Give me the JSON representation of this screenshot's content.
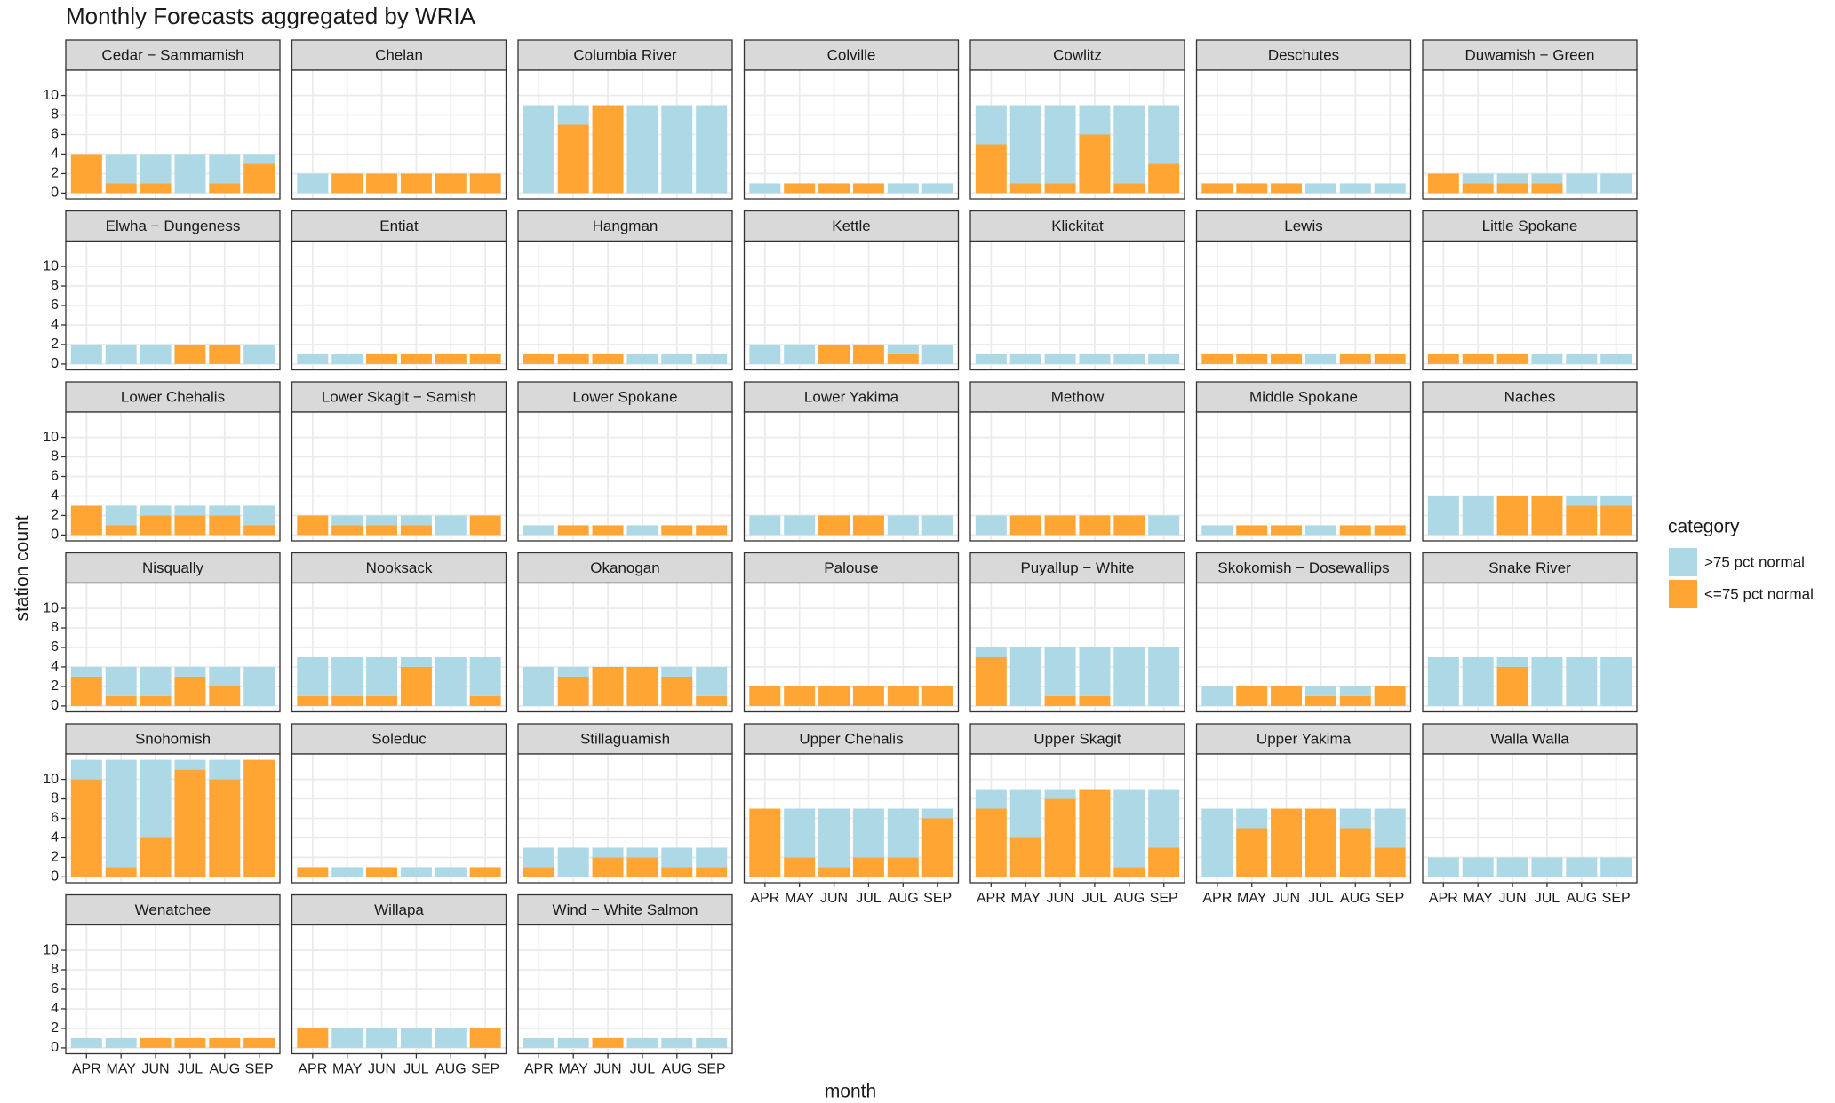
{
  "chart_data": {
    "type": "bar",
    "stacked": true,
    "title": "Monthly Forecasts aggregated by WRIA",
    "x_label": "month",
    "y_label": "station count",
    "legend_title": "category",
    "legend": "right",
    "grid": true,
    "categories": [
      "APR",
      "MAY",
      "JUN",
      "JUL",
      "AUG",
      "SEP"
    ],
    "ylim": [
      -0.6,
      12.6
    ],
    "yticks": [
      0,
      2,
      4,
      6,
      8,
      10
    ],
    "series": [
      {
        "name": ">75 pct normal",
        "color": "#add8e6"
      },
      {
        "name": "<=75 pct normal",
        "color": "#ffa533"
      }
    ],
    "facets": [
      {
        "title": "Cedar − Sammamish",
        "values": [
          [
            0,
            3,
            3,
            4,
            3,
            1
          ],
          [
            4,
            1,
            1,
            0,
            1,
            3
          ]
        ]
      },
      {
        "title": "Chelan",
        "values": [
          [
            2,
            0,
            0,
            0,
            0,
            0
          ],
          [
            0,
            2,
            2,
            2,
            2,
            2
          ]
        ]
      },
      {
        "title": "Columbia River",
        "values": [
          [
            9,
            2,
            0,
            9,
            9,
            9
          ],
          [
            0,
            7,
            9,
            0,
            0,
            0
          ]
        ]
      },
      {
        "title": "Colville",
        "values": [
          [
            1,
            0,
            0,
            0,
            1,
            1
          ],
          [
            0,
            1,
            1,
            1,
            0,
            0
          ]
        ]
      },
      {
        "title": "Cowlitz",
        "values": [
          [
            4,
            8,
            8,
            3,
            8,
            6
          ],
          [
            5,
            1,
            1,
            6,
            1,
            3
          ]
        ]
      },
      {
        "title": "Deschutes",
        "values": [
          [
            0,
            0,
            0,
            1,
            1,
            1
          ],
          [
            1,
            1,
            1,
            0,
            0,
            0
          ]
        ]
      },
      {
        "title": "Duwamish − Green",
        "values": [
          [
            0,
            1,
            1,
            1,
            2,
            2
          ],
          [
            2,
            1,
            1,
            1,
            0,
            0
          ]
        ]
      },
      {
        "title": "Elwha − Dungeness",
        "values": [
          [
            2,
            2,
            2,
            0,
            0,
            2
          ],
          [
            0,
            0,
            0,
            2,
            2,
            0
          ]
        ]
      },
      {
        "title": "Entiat",
        "values": [
          [
            1,
            1,
            0,
            0,
            0,
            0
          ],
          [
            0,
            0,
            1,
            1,
            1,
            1
          ]
        ]
      },
      {
        "title": "Hangman",
        "values": [
          [
            0,
            0,
            0,
            1,
            1,
            1
          ],
          [
            1,
            1,
            1,
            0,
            0,
            0
          ]
        ]
      },
      {
        "title": "Kettle",
        "values": [
          [
            2,
            2,
            0,
            0,
            1,
            2
          ],
          [
            0,
            0,
            2,
            2,
            1,
            0
          ]
        ]
      },
      {
        "title": "Klickitat",
        "values": [
          [
            1,
            1,
            1,
            1,
            1,
            1
          ],
          [
            0,
            0,
            0,
            0,
            0,
            0
          ]
        ]
      },
      {
        "title": "Lewis",
        "values": [
          [
            0,
            0,
            0,
            1,
            0,
            0
          ],
          [
            1,
            1,
            1,
            0,
            1,
            1
          ]
        ]
      },
      {
        "title": "Little Spokane",
        "values": [
          [
            0,
            0,
            0,
            1,
            1,
            1
          ],
          [
            1,
            1,
            1,
            0,
            0,
            0
          ]
        ]
      },
      {
        "title": "Lower Chehalis",
        "values": [
          [
            0,
            2,
            1,
            1,
            1,
            2
          ],
          [
            3,
            1,
            2,
            2,
            2,
            1
          ]
        ]
      },
      {
        "title": "Lower Skagit − Samish",
        "values": [
          [
            0,
            1,
            1,
            1,
            2,
            0
          ],
          [
            2,
            1,
            1,
            1,
            0,
            2
          ]
        ]
      },
      {
        "title": "Lower Spokane",
        "values": [
          [
            1,
            0,
            0,
            1,
            0,
            0
          ],
          [
            0,
            1,
            1,
            0,
            1,
            1
          ]
        ]
      },
      {
        "title": "Lower Yakima",
        "values": [
          [
            2,
            2,
            0,
            0,
            2,
            2
          ],
          [
            0,
            0,
            2,
            2,
            0,
            0
          ]
        ]
      },
      {
        "title": "Methow",
        "values": [
          [
            2,
            0,
            0,
            0,
            0,
            2
          ],
          [
            0,
            2,
            2,
            2,
            2,
            0
          ]
        ]
      },
      {
        "title": "Middle Spokane",
        "values": [
          [
            1,
            0,
            0,
            1,
            0,
            0
          ],
          [
            0,
            1,
            1,
            0,
            1,
            1
          ]
        ]
      },
      {
        "title": "Naches",
        "values": [
          [
            4,
            4,
            0,
            0,
            1,
            1
          ],
          [
            0,
            0,
            4,
            4,
            3,
            3
          ]
        ]
      },
      {
        "title": "Nisqually",
        "values": [
          [
            1,
            3,
            3,
            1,
            2,
            4
          ],
          [
            3,
            1,
            1,
            3,
            2,
            0
          ]
        ]
      },
      {
        "title": "Nooksack",
        "values": [
          [
            4,
            4,
            4,
            1,
            5,
            4
          ],
          [
            1,
            1,
            1,
            4,
            0,
            1
          ]
        ]
      },
      {
        "title": "Okanogan",
        "values": [
          [
            4,
            1,
            0,
            0,
            1,
            3
          ],
          [
            0,
            3,
            4,
            4,
            3,
            1
          ]
        ]
      },
      {
        "title": "Palouse",
        "values": [
          [
            0,
            0,
            0,
            0,
            0,
            0
          ],
          [
            2,
            2,
            2,
            2,
            2,
            2
          ]
        ]
      },
      {
        "title": "Puyallup − White",
        "values": [
          [
            1,
            6,
            5,
            5,
            6,
            6
          ],
          [
            5,
            0,
            1,
            1,
            0,
            0
          ]
        ]
      },
      {
        "title": "Skokomish − Dosewallips",
        "values": [
          [
            2,
            0,
            0,
            1,
            1,
            0
          ],
          [
            0,
            2,
            2,
            1,
            1,
            2
          ]
        ]
      },
      {
        "title": "Snake River",
        "values": [
          [
            5,
            5,
            1,
            5,
            5,
            5
          ],
          [
            0,
            0,
            4,
            0,
            0,
            0
          ]
        ]
      },
      {
        "title": "Snohomish",
        "values": [
          [
            2,
            11,
            8,
            1,
            2,
            0
          ],
          [
            10,
            1,
            4,
            11,
            10,
            12
          ]
        ]
      },
      {
        "title": "Soleduc",
        "values": [
          [
            0,
            1,
            0,
            1,
            1,
            0
          ],
          [
            1,
            0,
            1,
            0,
            0,
            1
          ]
        ]
      },
      {
        "title": "Stillaguamish",
        "values": [
          [
            2,
            3,
            1,
            1,
            2,
            2
          ],
          [
            1,
            0,
            2,
            2,
            1,
            1
          ]
        ]
      },
      {
        "title": "Upper Chehalis",
        "values": [
          [
            0,
            5,
            6,
            5,
            5,
            1
          ],
          [
            7,
            2,
            1,
            2,
            2,
            6
          ]
        ]
      },
      {
        "title": "Upper Skagit",
        "values": [
          [
            2,
            5,
            1,
            0,
            8,
            6
          ],
          [
            7,
            4,
            8,
            9,
            1,
            3
          ]
        ]
      },
      {
        "title": "Upper Yakima",
        "values": [
          [
            7,
            2,
            0,
            0,
            2,
            4
          ],
          [
            0,
            5,
            7,
            7,
            5,
            3
          ]
        ]
      },
      {
        "title": "Walla Walla",
        "values": [
          [
            2,
            2,
            2,
            2,
            2,
            2
          ],
          [
            0,
            0,
            0,
            0,
            0,
            0
          ]
        ]
      },
      {
        "title": "Wenatchee",
        "values": [
          [
            1,
            1,
            0,
            0,
            0,
            0
          ],
          [
            0,
            0,
            1,
            1,
            1,
            1
          ]
        ]
      },
      {
        "title": "Willapa",
        "values": [
          [
            0,
            2,
            2,
            2,
            2,
            0
          ],
          [
            2,
            0,
            0,
            0,
            0,
            2
          ]
        ]
      },
      {
        "title": "Wind − White Salmon",
        "values": [
          [
            1,
            1,
            0,
            1,
            1,
            1
          ],
          [
            0,
            0,
            1,
            0,
            0,
            0
          ]
        ]
      }
    ]
  }
}
